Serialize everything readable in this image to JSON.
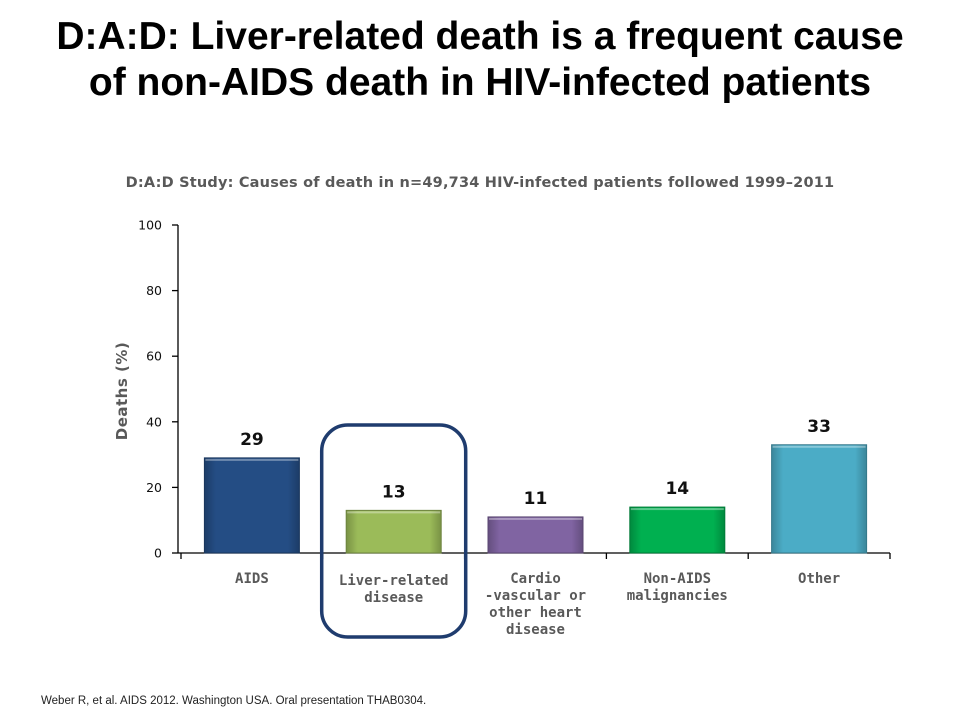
{
  "slide": {
    "title": "D:A:D: Liver-related death is a frequent cause of non-AIDS death in HIV-infected patients",
    "footer": "Weber R, et al. AIDS 2012. Washington USA. Oral presentation THAB0304."
  },
  "chart_data": {
    "type": "bar",
    "title": "D:A:D Study: Causes of death in n=49,734 HIV-infected patients followed 1999–2011",
    "ylabel": "Deaths (%)",
    "xlabel": "",
    "ylim": [
      0,
      100
    ],
    "yticks": [
      0,
      20,
      40,
      60,
      80,
      100
    ],
    "grid": false,
    "categories": [
      [
        "AIDS"
      ],
      [
        "Liver-related",
        "disease"
      ],
      [
        "Cardio",
        "-vascular or",
        "other heart",
        "disease"
      ],
      [
        "Non-AIDS",
        "malignancies"
      ],
      [
        "Other"
      ]
    ],
    "values": [
      29,
      13,
      11,
      14,
      33
    ],
    "colors": [
      "#244d84",
      "#9bbb59",
      "#8064a2",
      "#00b050",
      "#4bacc6"
    ],
    "highlight": {
      "category_index": 1,
      "color": "#1f3c6e"
    }
  }
}
